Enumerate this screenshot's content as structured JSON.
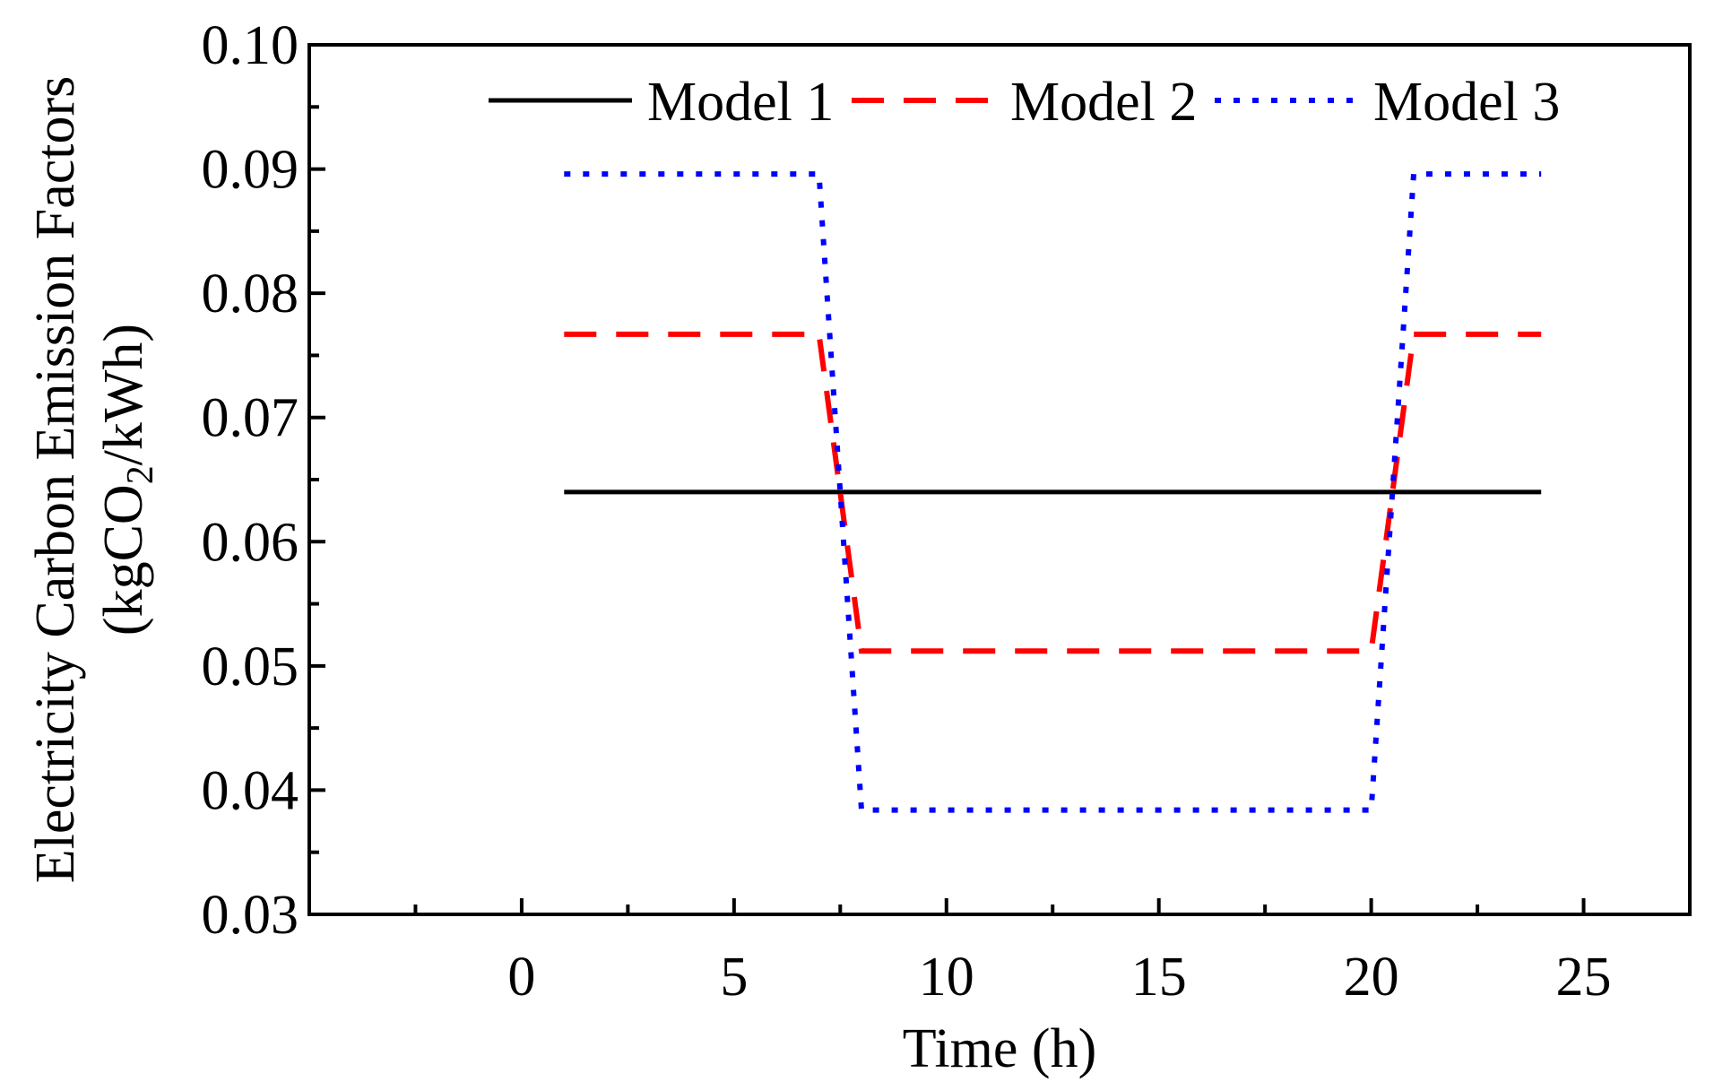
{
  "chart_data": {
    "type": "line",
    "xlabel": "Time (h)",
    "ylabel": {
      "line1": "Electricity Carbon Emission Factors",
      "line2_prefix": "(kgCO",
      "line2_sub": "2",
      "line2_suffix": "/kWh)"
    },
    "xlim": [
      -5,
      27.5
    ],
    "ylim": [
      0.03,
      0.1
    ],
    "x_ticks": [
      0,
      5,
      10,
      15,
      20,
      25
    ],
    "x_tick_labels": [
      "0",
      "5",
      "10",
      "15",
      "20",
      "25"
    ],
    "y_ticks": [
      0.03,
      0.04,
      0.05,
      0.06,
      0.07,
      0.08,
      0.09,
      0.1
    ],
    "y_tick_labels": [
      "0.03",
      "0.04",
      "0.05",
      "0.06",
      "0.07",
      "0.08",
      "0.09",
      "0.10"
    ],
    "legend_position": "top",
    "series": [
      {
        "name": "Model 1",
        "color": "#000000",
        "style": "solid",
        "x": [
          1,
          24
        ],
        "y": [
          0.064,
          0.064
        ]
      },
      {
        "name": "Model 2",
        "color": "#ff0000",
        "style": "dashed",
        "x": [
          1,
          7,
          8,
          20,
          21,
          24
        ],
        "y": [
          0.0767,
          0.0767,
          0.0512,
          0.0512,
          0.0767,
          0.0767
        ]
      },
      {
        "name": "Model 3",
        "color": "#0000ff",
        "style": "dotted",
        "x": [
          1,
          7,
          8,
          20,
          21,
          24
        ],
        "y": [
          0.0896,
          0.0896,
          0.0384,
          0.0384,
          0.0896,
          0.0896
        ]
      }
    ]
  }
}
